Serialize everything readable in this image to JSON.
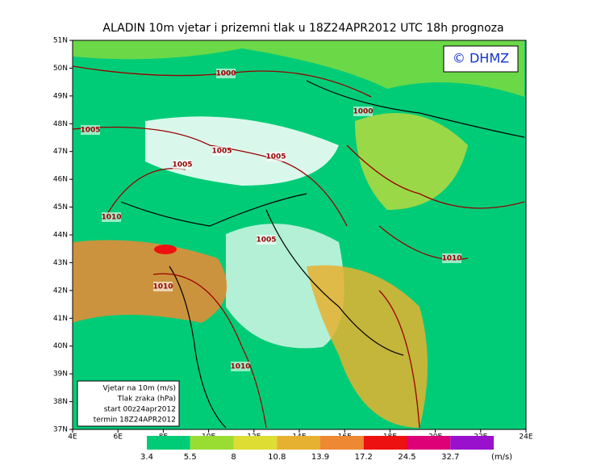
{
  "title": "ALADIN 10m vjetar i prizemni tlak u 18Z24APR2012 UTC 18h prognoza",
  "logo": "© DHMZ",
  "lat_labels": [
    "51N",
    "50N",
    "49N",
    "48N",
    "47N",
    "46N",
    "45N",
    "44N",
    "43N",
    "42N",
    "41N",
    "40N",
    "39N",
    "38N",
    "37N"
  ],
  "lon_labels": [
    "4E",
    "6E",
    "8E",
    "10E",
    "12E",
    "14E",
    "16E",
    "18E",
    "20E",
    "22E",
    "24E"
  ],
  "info_box": [
    "Vjetar na 10m (m/s)",
    "Tlak zraka (hPa)",
    "start 00z24apr2012",
    "termin 18Z24APR2012"
  ],
  "isobar_labels": [
    "1000",
    "1000",
    "1005",
    "1005",
    "1005",
    "1005",
    "1005",
    "1010",
    "1010",
    "1010",
    "1010"
  ],
  "legend": {
    "labels": [
      "3.4",
      "5.5",
      "8",
      "10.8",
      "13.9",
      "17.2",
      "24.5",
      "32.7"
    ],
    "unit": "(m/s)",
    "colors": [
      "#00cc77",
      "#99dd33",
      "#dddd33",
      "#e6b030",
      "#ee8833",
      "#ee1111",
      "#dd0077",
      "#9911cc"
    ]
  }
}
